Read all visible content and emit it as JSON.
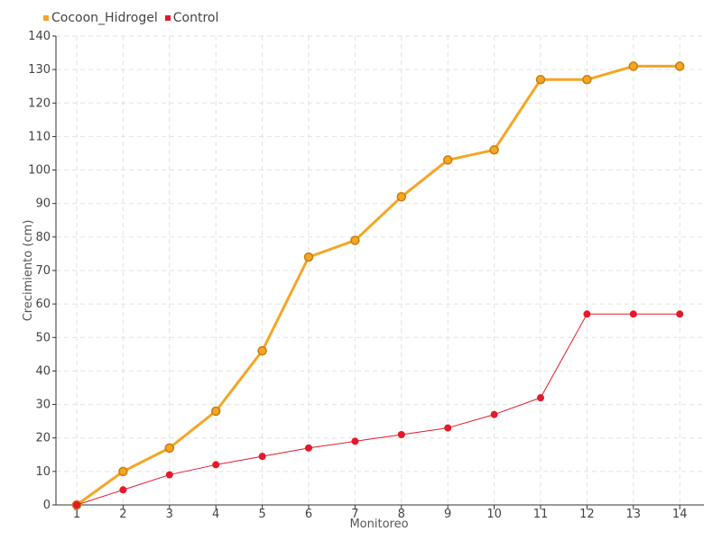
{
  "chart_data": {
    "type": "line",
    "title": "",
    "xlabel": "Monitoreo",
    "ylabel": "Crecimiento (cm)",
    "categories": [
      "1",
      "2",
      "3",
      "4",
      "5",
      "6",
      "7",
      "8",
      "9",
      "10",
      "11",
      "12",
      "13",
      "14"
    ],
    "ylim": [
      0,
      140
    ],
    "yticks": [
      0,
      10,
      20,
      30,
      40,
      50,
      60,
      70,
      80,
      90,
      100,
      110,
      120,
      130,
      140
    ],
    "grid": true,
    "legend_position": "top-left",
    "series": [
      {
        "name": "Cocoon_Hidrogel",
        "color": "#f5a623",
        "values": [
          0,
          10,
          17,
          28,
          46,
          74,
          79,
          92,
          103,
          106,
          127,
          127,
          131,
          131
        ]
      },
      {
        "name": "Control",
        "color": "#e31a2a",
        "values": [
          0,
          4.5,
          9,
          12,
          14.5,
          17,
          19,
          21,
          23,
          27,
          32,
          57,
          57,
          57
        ]
      }
    ]
  }
}
